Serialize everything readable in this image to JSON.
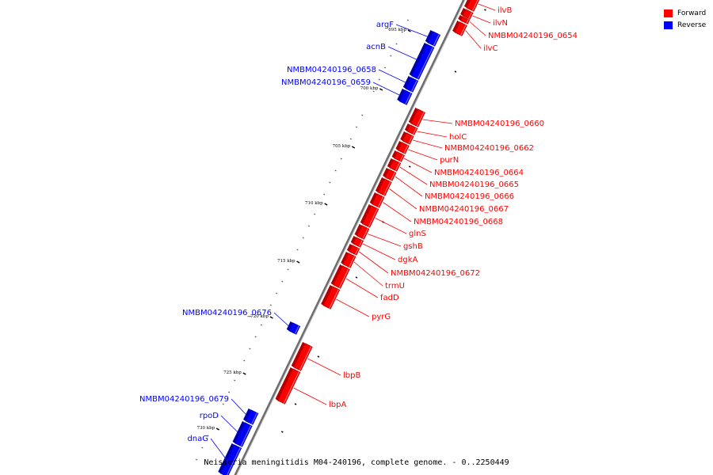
{
  "legend": {
    "forward_label": "Forward",
    "reverse_label": "Reverse",
    "forward_color": "#ff0000",
    "reverse_color": "#0000ff"
  },
  "caption": "Neisseria meningitidis M04-240196, complete genome. - 0..2250449",
  "tick_labels": [
    "695 kbp",
    "700 kbp",
    "705 kbp",
    "710 kbp",
    "715 kbp",
    "720 kbp",
    "725 kbp",
    "730 kbp"
  ],
  "forward_genes": [
    "ilvB",
    "ilvN",
    "NMBM04240196_0654",
    "ilvC",
    "NMBM04240196_0660",
    "holC",
    "NMBM04240196_0662",
    "purN",
    "NMBM04240196_0664",
    "NMBM04240196_0665",
    "NMBM04240196_0666",
    "NMBM04240196_0667",
    "NMBM04240196_0668",
    "glnS",
    "gshB",
    "dgkA",
    "NMBM04240196_0672",
    "trmU",
    "fadD",
    "pyrG",
    "lbpB",
    "lbpA"
  ],
  "reverse_genes": [
    "argF",
    "acnB",
    "NMBM04240196_0658",
    "NMBM04240196_0659",
    "NMBM04240196_0676",
    "NMBM04240196_0679",
    "rpoD",
    "dnaG"
  ]
}
